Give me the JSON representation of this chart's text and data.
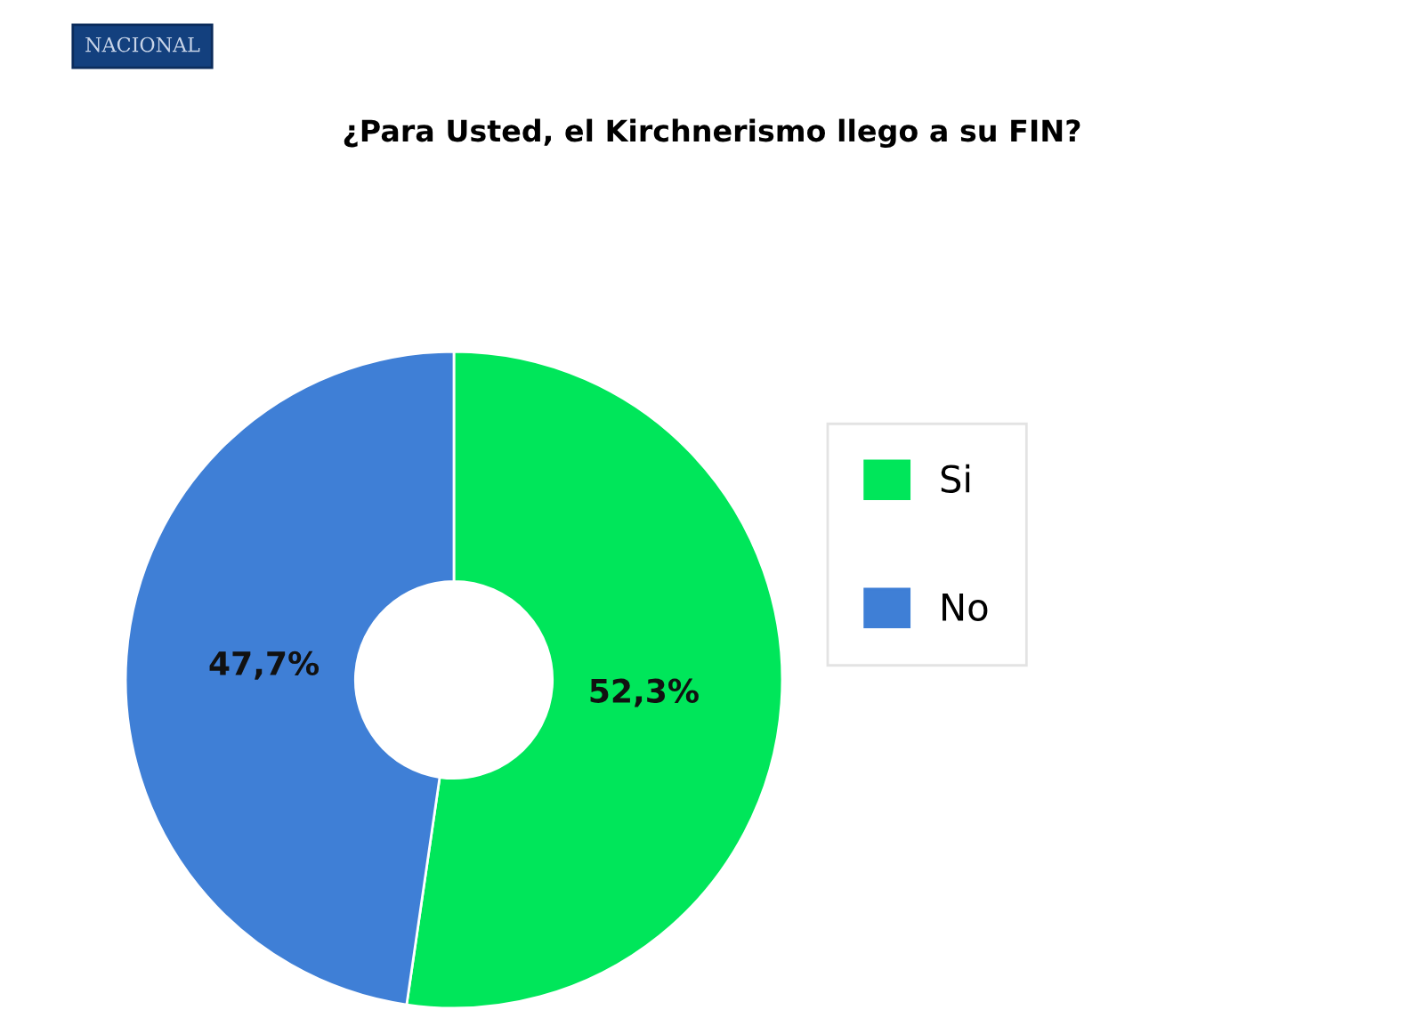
{
  "chart_data": {
    "type": "donut",
    "title": "¿Para Usted, el Kirchnerismo llego a su FIN?",
    "annotations": [
      "NACIONAL"
    ],
    "categories": [
      "Si",
      "No"
    ],
    "values": [
      52.3,
      47.7
    ],
    "colors": [
      "#00e65a",
      "#3f7fd6"
    ],
    "value_labels": [
      "52,3%",
      "47,7%"
    ],
    "legend": "right"
  }
}
